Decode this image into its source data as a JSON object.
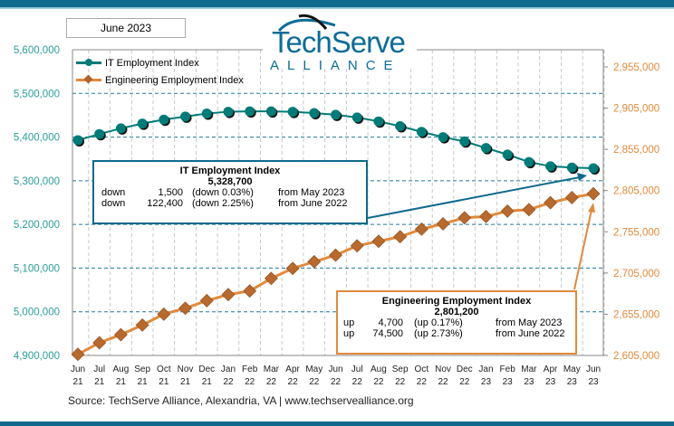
{
  "header": {
    "date_label": "June 2023",
    "logo_main": "TechServe",
    "logo_sub": "ALLIANCE"
  },
  "colors": {
    "it": "#007b78",
    "engineering": "#e08a3c",
    "left_axis": "#2a9d9a",
    "right_axis": "#e08a3c",
    "brand": "#0f6a8c"
  },
  "chart_data": {
    "type": "line",
    "categories": [
      "Jun 21",
      "Jul 21",
      "Aug 21",
      "Sep 21",
      "Oct 21",
      "Nov 21",
      "Dec 21",
      "Jan 22",
      "Feb 22",
      "Mar 22",
      "Apr 22",
      "May 22",
      "Jun 22",
      "Jul 22",
      "Aug 22",
      "Sep 22",
      "Oct 22",
      "Nov 22",
      "Dec 22",
      "Jan 23",
      "Feb 23",
      "Mar 23",
      "Apr 23",
      "May 23",
      "Jun 23"
    ],
    "series": [
      {
        "name": "IT Employment Index",
        "axis": "left",
        "marker": "circle",
        "values": [
          5393000,
          5407000,
          5420000,
          5431000,
          5440000,
          5447000,
          5454000,
          5458000,
          5459000,
          5459000,
          5458000,
          5455000,
          5451100,
          5445000,
          5436000,
          5425000,
          5412000,
          5400000,
          5390000,
          5375000,
          5360000,
          5343000,
          5333000,
          5330200,
          5328700
        ]
      },
      {
        "name": "Engineering Employment Index",
        "axis": "right",
        "marker": "diamond",
        "values": [
          2606400,
          2620400,
          2630200,
          2641900,
          2655100,
          2662300,
          2671500,
          2678800,
          2683200,
          2698500,
          2710600,
          2718700,
          2726700,
          2738000,
          2743500,
          2749000,
          2758200,
          2764700,
          2772000,
          2773500,
          2780100,
          2781900,
          2790300,
          2796500,
          2801200
        ]
      }
    ],
    "left_axis": {
      "ylim": [
        4900000,
        5600000
      ],
      "ticks": [
        "4,900,000",
        "5,000,000",
        "5,100,000",
        "5,200,000",
        "5,300,000",
        "5,400,000",
        "5,500,000",
        "5,600,000"
      ]
    },
    "right_axis": {
      "ylim": [
        2605000,
        2955000
      ],
      "ticks": [
        "2,605,000",
        "2,655,000",
        "2,705,000",
        "2,755,000",
        "2,805,000",
        "2,855,000",
        "2,905,000",
        "2,955,000"
      ]
    },
    "grid": true,
    "legend": "top-left"
  },
  "it_box": {
    "title": "IT Employment Index",
    "value": "5,328,700",
    "rows": [
      {
        "dir": "down",
        "amount": "1,500",
        "pct": "(down 0.03%)",
        "from": "from May 2023"
      },
      {
        "dir": "down",
        "amount": "122,400",
        "pct": "(down 2.25%)",
        "from": "from June 2022"
      }
    ]
  },
  "eng_box": {
    "title": "Engineering Employment Index",
    "value": "2,801,200",
    "rows": [
      {
        "dir": "up",
        "amount": "4,700",
        "pct": "(up 0.17%)",
        "from": "from May 2023"
      },
      {
        "dir": "up",
        "amount": "74,500",
        "pct": "(up 2.73%)",
        "from": "from June 2022"
      }
    ]
  },
  "source": "Source: TechServe Alliance, Alexandria, VA | www.techservealliance.org"
}
